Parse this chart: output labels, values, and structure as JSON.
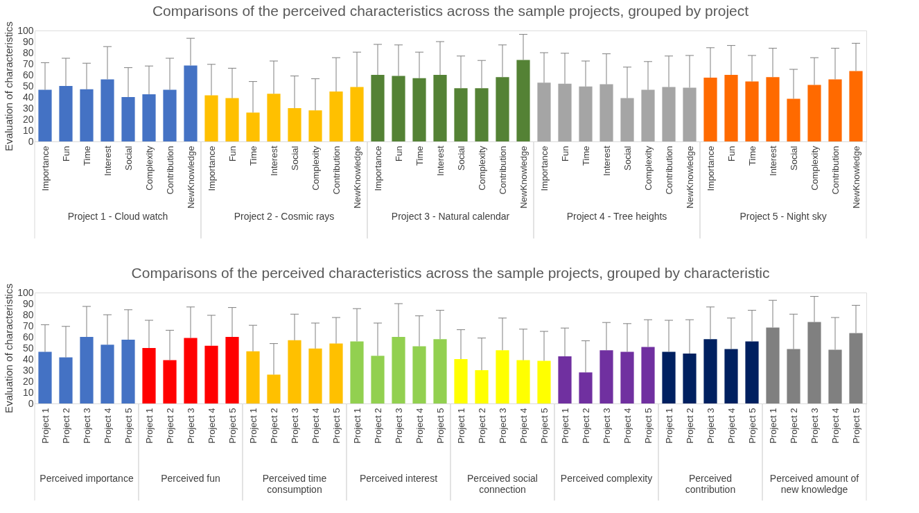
{
  "chart_data": [
    {
      "type": "bar",
      "title": "Comparisons of the perceived characteristics across the sample projects, grouped by project",
      "annotations": [
        "Project 1 - Cloud watch",
        "Project 2 - Cosmic rays",
        "Project 3 - Natural calendar",
        "Project 4 - Tree heights",
        "Project 5 - Night sky"
      ],
      "ylabel": "Evaluation of characteristics",
      "ylim": [
        0,
        100
      ],
      "yticks": [
        0,
        10,
        20,
        30,
        40,
        50,
        60,
        70,
        80,
        90,
        100
      ],
      "categories": [
        "Importance",
        "Fun",
        "Time",
        "Interest",
        "Social",
        "Complexity",
        "Contribution",
        "NewKnowledge",
        "Importance",
        "Fun",
        "Time",
        "Interest",
        "Social",
        "Complexity",
        "Contribution",
        "NewKnowledge",
        "Importance",
        "Fun",
        "Time",
        "Interest",
        "Social",
        "Complexity",
        "Contribution",
        "NewKnowledge",
        "Importance",
        "Fun",
        "Time",
        "Interest",
        "Social",
        "Complexity",
        "Contribution",
        "NewKnowledge",
        "Importance",
        "Fun",
        "Time",
        "Interest",
        "Social",
        "Complexity",
        "Contribution",
        "NewKnowledge"
      ],
      "series": [
        {
          "color": "#4472c4",
          "values": [
            46.5,
            50,
            47,
            56,
            40,
            42.5,
            46.5,
            68.5,
            null,
            null,
            null,
            null,
            null,
            null,
            null,
            null,
            null,
            null,
            null,
            null,
            null,
            null,
            null,
            null,
            null,
            null,
            null,
            null,
            null,
            null,
            null,
            null,
            null,
            null,
            null,
            null,
            null,
            null,
            null,
            null
          ],
          "errors": [
            24.5,
            25,
            23.5,
            29.5,
            26.5,
            25.5,
            28.5,
            24.5,
            null,
            null,
            null,
            null,
            null,
            null,
            null,
            null,
            null,
            null,
            null,
            null,
            null,
            null,
            null,
            null,
            null,
            null,
            null,
            null,
            null,
            null,
            null,
            null,
            null,
            null,
            null,
            null,
            null,
            null,
            null,
            null
          ]
        },
        {
          "color": "#ffc000",
          "values": [
            null,
            null,
            null,
            null,
            null,
            null,
            null,
            null,
            41.5,
            39,
            26,
            43,
            30,
            28,
            45,
            49,
            null,
            null,
            null,
            null,
            null,
            null,
            null,
            null,
            null,
            null,
            null,
            null,
            null,
            null,
            null,
            null,
            null,
            null,
            null,
            null,
            null,
            null,
            null,
            null
          ],
          "errors": [
            null,
            null,
            null,
            null,
            null,
            null,
            null,
            null,
            28,
            27,
            28,
            29.5,
            29,
            28.5,
            30.5,
            31.5,
            null,
            null,
            null,
            null,
            null,
            null,
            null,
            null,
            null,
            null,
            null,
            null,
            null,
            null,
            null,
            null,
            null,
            null,
            null,
            null,
            null,
            null,
            null,
            null
          ]
        },
        {
          "color": "#548235",
          "values": [
            null,
            null,
            null,
            null,
            null,
            null,
            null,
            null,
            null,
            null,
            null,
            null,
            null,
            null,
            null,
            null,
            60,
            59,
            57,
            60,
            48,
            48,
            58,
            73.5,
            null,
            null,
            null,
            null,
            null,
            null,
            null,
            null,
            null,
            null,
            null,
            null,
            null,
            null,
            null,
            null
          ],
          "errors": [
            null,
            null,
            null,
            null,
            null,
            null,
            null,
            null,
            null,
            null,
            null,
            null,
            null,
            null,
            null,
            null,
            27.5,
            28,
            23.5,
            30,
            29,
            25,
            29,
            23,
            null,
            null,
            null,
            null,
            null,
            null,
            null,
            null,
            null,
            null,
            null,
            null,
            null,
            null,
            null,
            null
          ]
        },
        {
          "color": "#a5a5a5",
          "values": [
            null,
            null,
            null,
            null,
            null,
            null,
            null,
            null,
            null,
            null,
            null,
            null,
            null,
            null,
            null,
            null,
            null,
            null,
            null,
            null,
            null,
            null,
            null,
            null,
            53,
            52,
            49.5,
            51.5,
            39,
            46.5,
            49,
            48.5,
            null,
            null,
            null,
            null,
            null,
            null,
            null,
            null
          ],
          "errors": [
            null,
            null,
            null,
            null,
            null,
            null,
            null,
            null,
            null,
            null,
            null,
            null,
            null,
            null,
            null,
            null,
            null,
            null,
            null,
            null,
            null,
            null,
            null,
            null,
            27,
            27.5,
            23,
            27.5,
            28,
            25.5,
            28,
            29,
            null,
            null,
            null,
            null,
            null,
            null,
            null,
            null
          ]
        },
        {
          "color": "#ff6a00",
          "values": [
            null,
            null,
            null,
            null,
            null,
            null,
            null,
            null,
            null,
            null,
            null,
            null,
            null,
            null,
            null,
            null,
            null,
            null,
            null,
            null,
            null,
            null,
            null,
            null,
            null,
            null,
            null,
            null,
            null,
            null,
            null,
            null,
            57.5,
            60,
            54,
            58,
            38.5,
            51,
            56,
            63.5
          ],
          "errors": [
            null,
            null,
            null,
            null,
            null,
            null,
            null,
            null,
            null,
            null,
            null,
            null,
            null,
            null,
            null,
            null,
            null,
            null,
            null,
            null,
            null,
            null,
            null,
            null,
            null,
            null,
            null,
            null,
            null,
            null,
            null,
            null,
            27,
            26.5,
            23.5,
            26,
            26.5,
            24.5,
            28,
            25
          ]
        }
      ]
    },
    {
      "type": "bar",
      "title": "Comparisons of the perceived characteristics across the sample projects, grouped by characteristic",
      "annotations": [
        "Perceived importance",
        "Perceived fun",
        "Perceived time consumption",
        "Perceived interest",
        "Perceived social connection",
        "Perceived complexity",
        "Perceived contribution",
        "Perceived amount of new knowledge"
      ],
      "ylabel": "Evaluation of characteristics",
      "ylim": [
        0,
        100
      ],
      "yticks": [
        0,
        10,
        20,
        30,
        40,
        50,
        60,
        70,
        80,
        90,
        100
      ],
      "categories": [
        "Project 1",
        "Project 2",
        "Project 3",
        "Project 4",
        "Project 5",
        "Project 1",
        "Project 2",
        "Project 3",
        "Project 4",
        "Project 5",
        "Project 1",
        "Project 2",
        "Project 3",
        "Project 4",
        "Project 5",
        "Project 1",
        "Project 2",
        "Project 3",
        "Project 4",
        "Project 5",
        "Project 1",
        "Project 2",
        "Project 3",
        "Project 4",
        "Project 5",
        "Project 1",
        "Project 2",
        "Project 3",
        "Project 4",
        "Project 5",
        "Project 1",
        "Project 2",
        "Project 3",
        "Project 4",
        "Project 5",
        "Project 1",
        "Project 2",
        "Project 3",
        "Project 4",
        "Project 5"
      ],
      "series": [
        {
          "color": "#4472c4",
          "values": [
            46.5,
            41.5,
            60,
            53,
            57.5,
            null,
            null,
            null,
            null,
            null,
            null,
            null,
            null,
            null,
            null,
            null,
            null,
            null,
            null,
            null,
            null,
            null,
            null,
            null,
            null,
            null,
            null,
            null,
            null,
            null,
            null,
            null,
            null,
            null,
            null,
            null,
            null,
            null,
            null,
            null
          ],
          "errors": [
            24.5,
            28,
            27.5,
            27,
            27,
            null,
            null,
            null,
            null,
            null,
            null,
            null,
            null,
            null,
            null,
            null,
            null,
            null,
            null,
            null,
            null,
            null,
            null,
            null,
            null,
            null,
            null,
            null,
            null,
            null,
            null,
            null,
            null,
            null,
            null,
            null,
            null,
            null,
            null,
            null
          ]
        },
        {
          "color": "#ff0000",
          "values": [
            null,
            null,
            null,
            null,
            null,
            50,
            39,
            59,
            52,
            60,
            null,
            null,
            null,
            null,
            null,
            null,
            null,
            null,
            null,
            null,
            null,
            null,
            null,
            null,
            null,
            null,
            null,
            null,
            null,
            null,
            null,
            null,
            null,
            null,
            null,
            null,
            null,
            null,
            null,
            null
          ],
          "errors": [
            null,
            null,
            null,
            null,
            null,
            25,
            27,
            28,
            27.5,
            26.5,
            null,
            null,
            null,
            null,
            null,
            null,
            null,
            null,
            null,
            null,
            null,
            null,
            null,
            null,
            null,
            null,
            null,
            null,
            null,
            null,
            null,
            null,
            null,
            null,
            null,
            null,
            null,
            null,
            null,
            null
          ]
        },
        {
          "color": "#ffc000",
          "values": [
            null,
            null,
            null,
            null,
            null,
            null,
            null,
            null,
            null,
            null,
            47,
            26,
            57,
            49.5,
            54,
            null,
            null,
            null,
            null,
            null,
            null,
            null,
            null,
            null,
            null,
            null,
            null,
            null,
            null,
            null,
            null,
            null,
            null,
            null,
            null,
            null,
            null,
            null,
            null,
            null
          ],
          "errors": [
            null,
            null,
            null,
            null,
            null,
            null,
            null,
            null,
            null,
            null,
            23.5,
            28,
            23.5,
            23,
            23.5,
            null,
            null,
            null,
            null,
            null,
            null,
            null,
            null,
            null,
            null,
            null,
            null,
            null,
            null,
            null,
            null,
            null,
            null,
            null,
            null,
            null,
            null,
            null,
            null,
            null
          ]
        },
        {
          "color": "#92d050",
          "values": [
            null,
            null,
            null,
            null,
            null,
            null,
            null,
            null,
            null,
            null,
            null,
            null,
            null,
            null,
            null,
            56,
            43,
            60,
            51.5,
            58,
            null,
            null,
            null,
            null,
            null,
            null,
            null,
            null,
            null,
            null,
            null,
            null,
            null,
            null,
            null,
            null,
            null,
            null,
            null,
            null
          ],
          "errors": [
            null,
            null,
            null,
            null,
            null,
            null,
            null,
            null,
            null,
            null,
            null,
            null,
            null,
            null,
            null,
            29.5,
            29.5,
            30,
            27.5,
            26,
            null,
            null,
            null,
            null,
            null,
            null,
            null,
            null,
            null,
            null,
            null,
            null,
            null,
            null,
            null,
            null,
            null,
            null,
            null,
            null
          ]
        },
        {
          "color": "#ffff00",
          "values": [
            null,
            null,
            null,
            null,
            null,
            null,
            null,
            null,
            null,
            null,
            null,
            null,
            null,
            null,
            null,
            null,
            null,
            null,
            null,
            null,
            40,
            30,
            48,
            39,
            38.5,
            null,
            null,
            null,
            null,
            null,
            null,
            null,
            null,
            null,
            null,
            null,
            null,
            null,
            null,
            null
          ],
          "errors": [
            null,
            null,
            null,
            null,
            null,
            null,
            null,
            null,
            null,
            null,
            null,
            null,
            null,
            null,
            null,
            null,
            null,
            null,
            null,
            null,
            26.5,
            29,
            29,
            28,
            26.5,
            null,
            null,
            null,
            null,
            null,
            null,
            null,
            null,
            null,
            null,
            null,
            null,
            null,
            null,
            null
          ]
        },
        {
          "color": "#7030a0",
          "values": [
            null,
            null,
            null,
            null,
            null,
            null,
            null,
            null,
            null,
            null,
            null,
            null,
            null,
            null,
            null,
            null,
            null,
            null,
            null,
            null,
            null,
            null,
            null,
            null,
            null,
            42.5,
            28,
            48,
            46.5,
            51,
            null,
            null,
            null,
            null,
            null,
            null,
            null,
            null,
            null,
            null
          ],
          "errors": [
            null,
            null,
            null,
            null,
            null,
            null,
            null,
            null,
            null,
            null,
            null,
            null,
            null,
            null,
            null,
            null,
            null,
            null,
            null,
            null,
            null,
            null,
            null,
            null,
            null,
            25.5,
            28.5,
            25,
            25.5,
            24.5,
            null,
            null,
            null,
            null,
            null,
            null,
            null,
            null,
            null,
            null
          ]
        },
        {
          "color": "#002060",
          "values": [
            null,
            null,
            null,
            null,
            null,
            null,
            null,
            null,
            null,
            null,
            null,
            null,
            null,
            null,
            null,
            null,
            null,
            null,
            null,
            null,
            null,
            null,
            null,
            null,
            null,
            null,
            null,
            null,
            null,
            null,
            46.5,
            45,
            58,
            49,
            56,
            null,
            null,
            null,
            null,
            null
          ],
          "errors": [
            null,
            null,
            null,
            null,
            null,
            null,
            null,
            null,
            null,
            null,
            null,
            null,
            null,
            null,
            null,
            null,
            null,
            null,
            null,
            null,
            null,
            null,
            null,
            null,
            null,
            null,
            null,
            null,
            null,
            null,
            28.5,
            30.5,
            29,
            28,
            28,
            null,
            null,
            null,
            null,
            null
          ]
        },
        {
          "color": "#808080",
          "values": [
            null,
            null,
            null,
            null,
            null,
            null,
            null,
            null,
            null,
            null,
            null,
            null,
            null,
            null,
            null,
            null,
            null,
            null,
            null,
            null,
            null,
            null,
            null,
            null,
            null,
            null,
            null,
            null,
            null,
            null,
            null,
            null,
            null,
            null,
            null,
            68.5,
            49,
            73.5,
            48.5,
            63.5
          ],
          "errors": [
            null,
            null,
            null,
            null,
            null,
            null,
            null,
            null,
            null,
            null,
            null,
            null,
            null,
            null,
            null,
            null,
            null,
            null,
            null,
            null,
            null,
            null,
            null,
            null,
            null,
            null,
            null,
            null,
            null,
            null,
            null,
            null,
            null,
            null,
            null,
            24.5,
            31.5,
            23,
            29,
            25
          ]
        }
      ]
    }
  ]
}
